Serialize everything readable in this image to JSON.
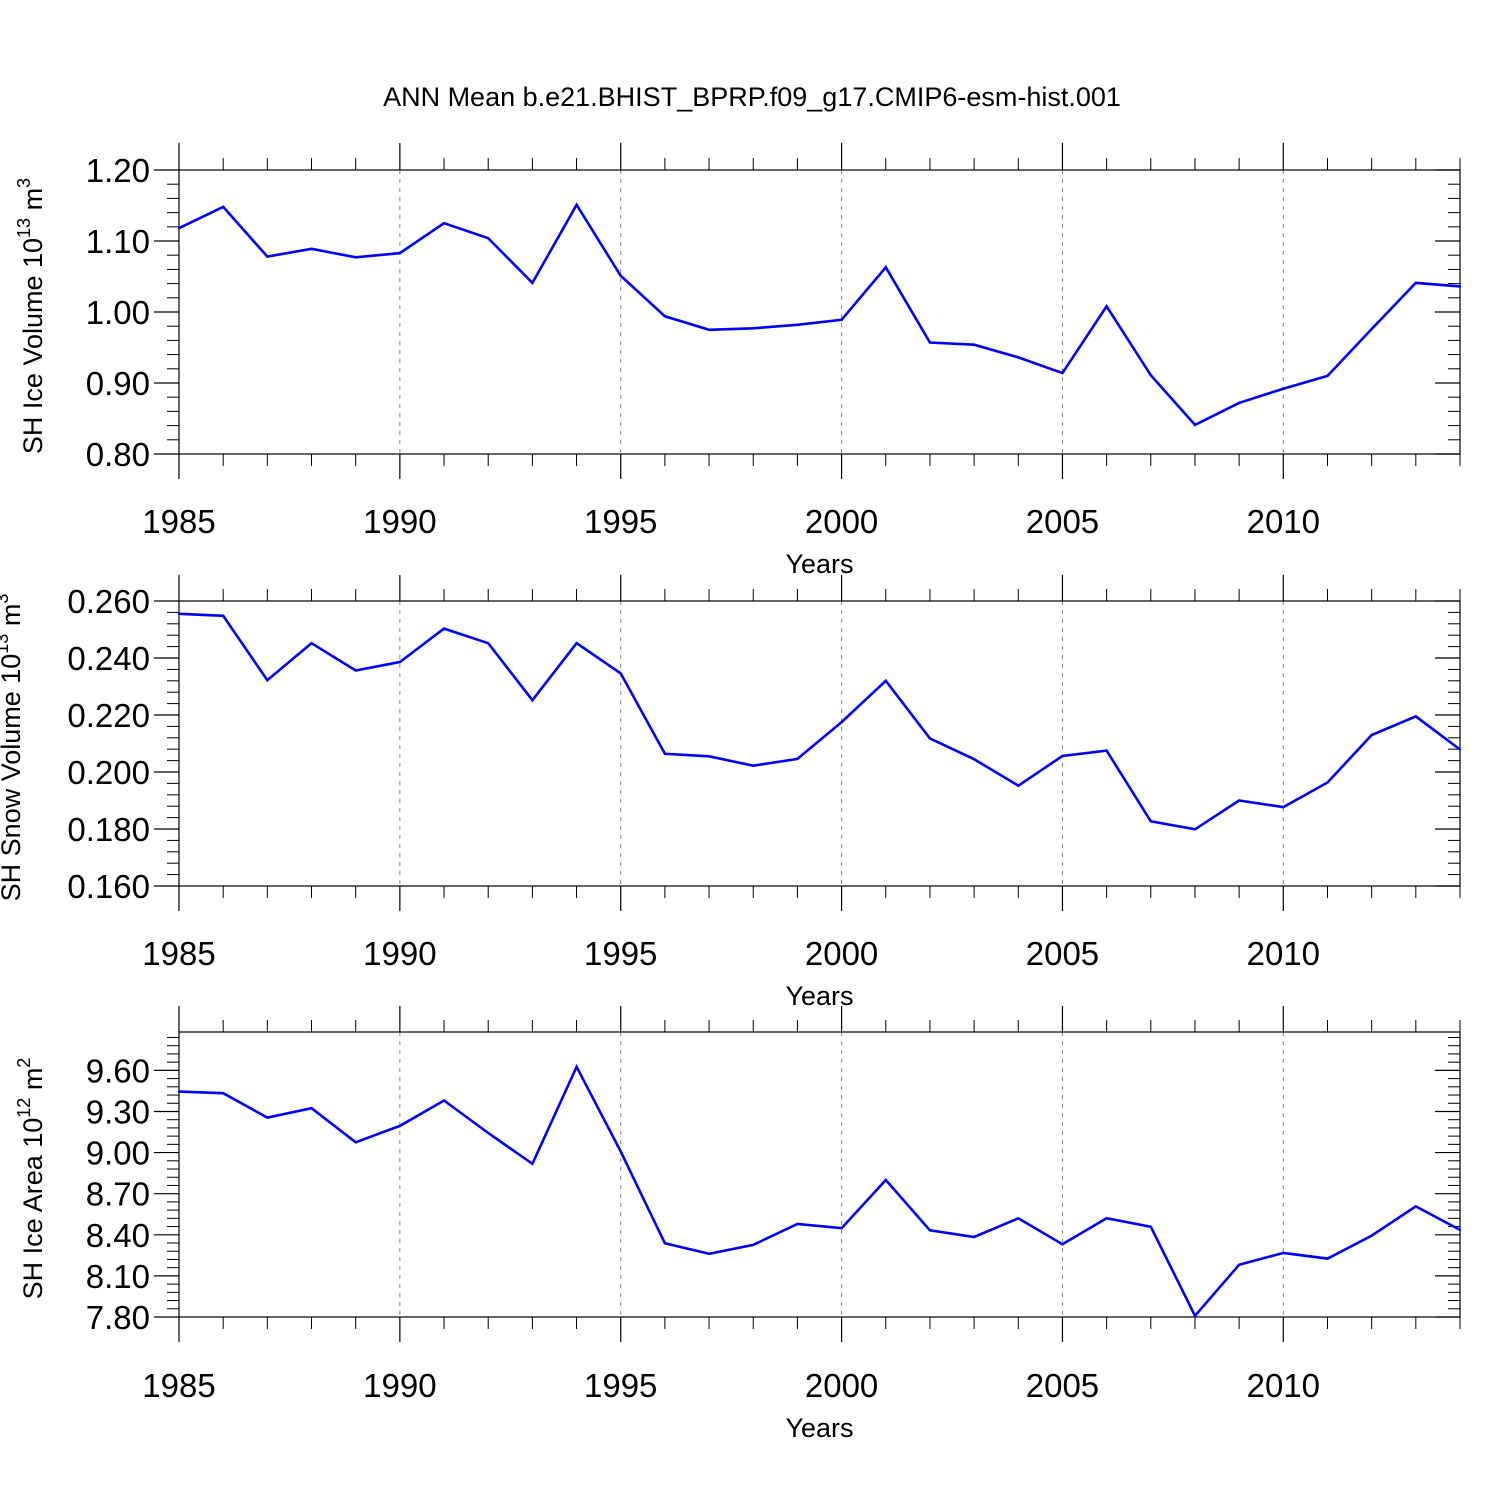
{
  "title": "ANN Mean b.e21.BHIST_BPRP.f09_g17.CMIP6-esm-hist.001",
  "colors": {
    "line": "#0000ff",
    "axes": "#000000",
    "grid": "#888888",
    "background": "#ffffff"
  },
  "chart_data": [
    {
      "type": "line",
      "xlabel": "Years",
      "ylabel": {
        "main": "SH Ice Volume 10",
        "exponent": "13",
        "unit": " m",
        "unit_exponent": "3"
      },
      "xlim": [
        1985,
        2014
      ],
      "ylim": [
        0.8,
        1.2
      ],
      "xticks": [
        1985,
        1990,
        1995,
        2000,
        2005,
        2010
      ],
      "xtick_labels": [
        "1985",
        "1990",
        "1995",
        "2000",
        "2005",
        "2010"
      ],
      "yticks": [
        0.8,
        0.9,
        1.0,
        1.1,
        1.2
      ],
      "ytick_labels": [
        "0.80",
        "0.90",
        "1.00",
        "1.10",
        "1.20"
      ],
      "grid": "vertical dashed",
      "x": [
        1985,
        1986,
        1987,
        1988,
        1989,
        1990,
        1991,
        1992,
        1993,
        1994,
        1995,
        1996,
        1997,
        1998,
        1999,
        2000,
        2001,
        2002,
        2003,
        2004,
        2005,
        2006,
        2007,
        2008,
        2009,
        2010,
        2011,
        2012,
        2013,
        2014
      ],
      "values": [
        1.118,
        1.148,
        1.078,
        1.089,
        1.077,
        1.083,
        1.125,
        1.104,
        1.041,
        1.151,
        1.051,
        0.994,
        0.975,
        0.977,
        0.982,
        0.989,
        1.063,
        0.957,
        0.954,
        0.936,
        0.914,
        1.008,
        0.911,
        0.841,
        0.872,
        0.892,
        0.91,
        0.976,
        1.041,
        1.036
      ]
    },
    {
      "type": "line",
      "xlabel": "Years",
      "ylabel": {
        "main": "SH Snow Volume 10",
        "exponent": "13",
        "unit": " m",
        "unit_exponent": "3"
      },
      "xlim": [
        1985,
        2014
      ],
      "ylim": [
        0.16,
        0.26
      ],
      "xticks": [
        1985,
        1990,
        1995,
        2000,
        2005,
        2010
      ],
      "xtick_labels": [
        "1985",
        "1990",
        "1995",
        "2000",
        "2005",
        "2010"
      ],
      "yticks": [
        0.16,
        0.18,
        0.2,
        0.22,
        0.24,
        0.26
      ],
      "ytick_labels": [
        "0.160",
        "0.180",
        "0.200",
        "0.220",
        "0.240",
        "0.260"
      ],
      "grid": "vertical dashed",
      "x": [
        1985,
        1986,
        1987,
        1988,
        1989,
        1990,
        1991,
        1992,
        1993,
        1994,
        1995,
        1996,
        1997,
        1998,
        1999,
        2000,
        2001,
        2002,
        2003,
        2004,
        2005,
        2006,
        2007,
        2008,
        2009,
        2010,
        2011,
        2012,
        2013,
        2014
      ],
      "values": [
        0.2555,
        0.2548,
        0.2322,
        0.2452,
        0.2356,
        0.2386,
        0.2503,
        0.2452,
        0.2252,
        0.2452,
        0.2346,
        0.2064,
        0.2055,
        0.2022,
        0.2046,
        0.2175,
        0.232,
        0.2118,
        0.2045,
        0.1952,
        0.2056,
        0.2075,
        0.1827,
        0.1799,
        0.19,
        0.1877,
        0.1963,
        0.213,
        0.2195,
        0.2079
      ]
    },
    {
      "type": "line",
      "xlabel": "Years",
      "ylabel": {
        "main": "SH Ice Area 10",
        "exponent": "12",
        "unit": " m",
        "unit_exponent": "2"
      },
      "xlim": [
        1985,
        2014
      ],
      "ylim": [
        7.8,
        9.88
      ],
      "xticks": [
        1985,
        1990,
        1995,
        2000,
        2005,
        2010
      ],
      "xtick_labels": [
        "1985",
        "1990",
        "1995",
        "2000",
        "2005",
        "2010"
      ],
      "yticks": [
        7.8,
        8.1,
        8.4,
        8.7,
        9.0,
        9.3,
        9.6
      ],
      "ytick_labels": [
        "7.80",
        "8.10",
        "8.40",
        "8.70",
        "9.00",
        "9.30",
        "9.60"
      ],
      "grid": "vertical dashed",
      "x": [
        1985,
        1986,
        1987,
        1988,
        1989,
        1990,
        1991,
        1992,
        1993,
        1994,
        1995,
        1996,
        1997,
        1998,
        1999,
        2000,
        2001,
        2002,
        2003,
        2004,
        2005,
        2006,
        2007,
        2008,
        2009,
        2010,
        2011,
        2012,
        2013,
        2014
      ],
      "values": [
        9.445,
        9.433,
        9.255,
        9.324,
        9.075,
        9.195,
        9.38,
        9.143,
        8.918,
        9.626,
        9.008,
        8.338,
        8.261,
        8.326,
        8.479,
        8.448,
        8.8,
        8.433,
        8.384,
        8.52,
        8.331,
        8.521,
        8.458,
        7.809,
        8.181,
        8.268,
        8.226,
        8.394,
        8.607,
        8.436
      ]
    }
  ]
}
